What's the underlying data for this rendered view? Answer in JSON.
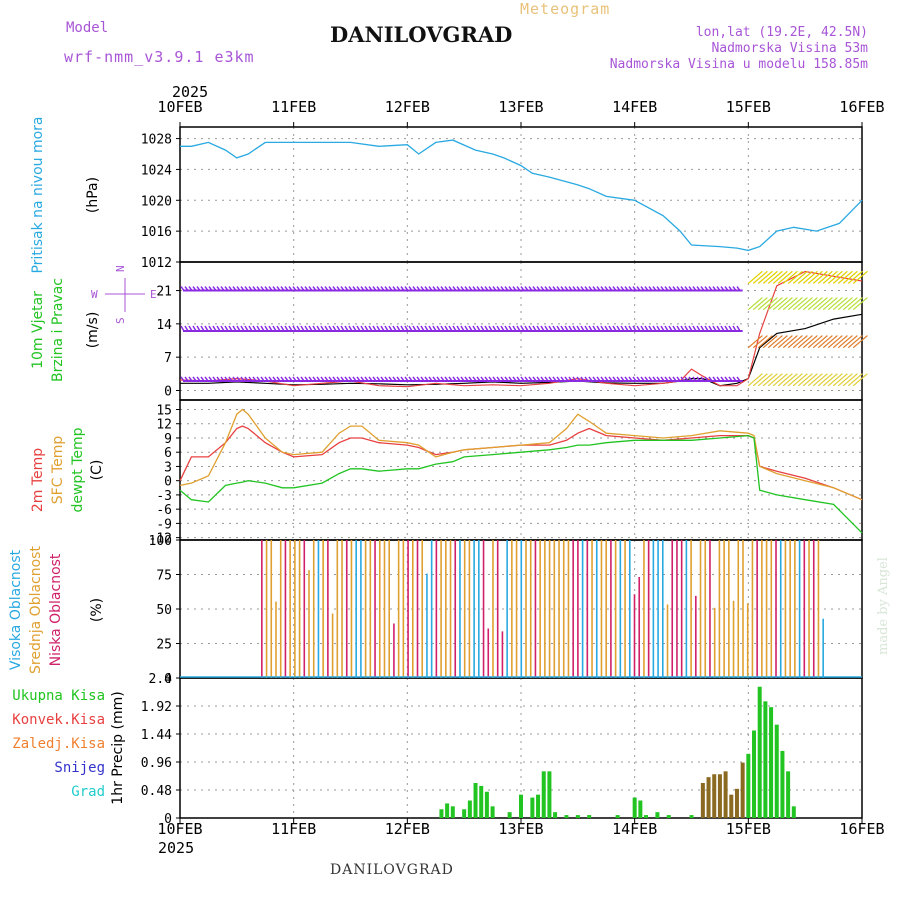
{
  "header": {
    "model_label": "Model",
    "model_run": "wrf-nmm_v3.9.1 e3km",
    "title": "DANILOVGRAD",
    "meteogram": "Meteogram",
    "lonlat": "lon,lat (19.2E, 42.5N)",
    "altitude": "Nadmorska Visina 53m",
    "model_altitude": "Nadmorska Visina u modelu 158.85m"
  },
  "footer": {
    "title": "DANILOVGRAD",
    "made_by": "made by Angel"
  },
  "colors": {
    "pressure": "#29a9e1",
    "wind_axis": "#22c422",
    "wind_axis2": "#22c422",
    "temp2m": "#e84040",
    "sfc": "#e0a030",
    "dew": "#22c422",
    "high_cloud": "#29a9e1",
    "mid_cloud": "#e0a030",
    "low_cloud": "#d0206a",
    "total_precip": "#22c422",
    "conv": "#e84040",
    "frozen": "#f08030",
    "snow": "#3333cc",
    "hail": "#22cccc",
    "barb": "#8a2be2",
    "grid": "#999999"
  },
  "time_axis": {
    "year": "2025",
    "labels": [
      "10FEB",
      "11FEB",
      "12FEB",
      "13FEB",
      "14FEB",
      "15FEB",
      "16FEB"
    ]
  },
  "chart_data": [
    {
      "type": "line",
      "panel": "pressure",
      "ylabel_1": "Pritisak na nivou mora",
      "ylabel_2": "(hPa)",
      "yticks": [
        "1012",
        "1016",
        "1020",
        "1024",
        "1028"
      ],
      "ylim": [
        1012,
        1029.5
      ],
      "x_days": [
        0,
        0.1,
        0.25,
        0.4,
        0.5,
        0.6,
        0.75,
        1.0,
        1.25,
        1.5,
        1.75,
        2.0,
        2.1,
        2.25,
        2.4,
        2.6,
        2.75,
        2.85,
        3.0,
        3.1,
        3.25,
        3.5,
        3.6,
        3.75,
        4.0,
        4.25,
        4.4,
        4.5,
        4.75,
        4.9,
        5.0,
        5.1,
        5.25,
        5.4,
        5.6,
        5.8,
        6.0
      ],
      "values": [
        1027,
        1027,
        1027.5,
        1026.5,
        1025.5,
        1026,
        1027.5,
        1027.5,
        1027.5,
        1027.5,
        1027,
        1027.2,
        1026,
        1027.5,
        1027.8,
        1026.5,
        1026,
        1025.5,
        1024.5,
        1023.5,
        1023,
        1022,
        1021.5,
        1020.5,
        1020,
        1018,
        1016,
        1014.2,
        1014,
        1013.8,
        1013.5,
        1014,
        1016,
        1016.5,
        1016,
        1017,
        1020
      ]
    },
    {
      "type": "line",
      "panel": "wind",
      "ylabel_1": "10m Vjetar",
      "ylabel_2": "Brzina i Pravac",
      "ylabel_3": "(m/s)",
      "direction_key": [
        "N",
        "E",
        "S",
        "W"
      ],
      "yticks": [
        "0",
        "7",
        "14",
        "21"
      ],
      "ylim": [
        -2,
        27
      ],
      "x_days": [
        0,
        0.25,
        0.5,
        0.75,
        1.0,
        1.25,
        1.5,
        1.75,
        2.0,
        2.25,
        2.5,
        2.75,
        3.0,
        3.25,
        3.5,
        3.75,
        4.0,
        4.25,
        4.4,
        4.5,
        4.6,
        4.75,
        4.9,
        5.0,
        5.1,
        5.25,
        5.5,
        5.75,
        6.0
      ],
      "series": [
        {
          "name": "10m wind speed",
          "values": [
            1.5,
            1.5,
            1.8,
            1.5,
            1.2,
            1.3,
            1.5,
            1.4,
            1.2,
            1.3,
            1.5,
            1.8,
            1.5,
            1.7,
            2.0,
            1.6,
            1.5,
            1.5,
            2.0,
            2.5,
            2.5,
            1.0,
            1.5,
            2.5,
            9,
            12,
            13,
            15,
            16
          ]
        },
        {
          "name": "10m wind gust",
          "values": [
            2.2,
            2.0,
            2.5,
            2.0,
            1.0,
            1.5,
            2.0,
            1.0,
            0.8,
            1.5,
            1.0,
            1.2,
            1.0,
            1.5,
            2.5,
            1.5,
            1.0,
            1.5,
            2.0,
            4.5,
            3.0,
            1.0,
            1.0,
            2.5,
            12,
            22,
            25,
            24,
            23
          ]
        }
      ]
    },
    {
      "type": "line",
      "panel": "temperature",
      "ylabel_1": "2m Temp",
      "ylabel_2": "SFC Temp",
      "ylabel_3": "dewpt Temp",
      "ylabel_4": "(C)",
      "yticks": [
        "-12",
        "-9",
        "-6",
        "-3",
        "0",
        "3",
        "6",
        "9",
        "12",
        "15"
      ],
      "ylim": [
        -12.5,
        17
      ],
      "x_days": [
        0,
        0.1,
        0.25,
        0.4,
        0.5,
        0.55,
        0.6,
        0.75,
        0.9,
        1.0,
        1.25,
        1.4,
        1.5,
        1.6,
        1.75,
        2.0,
        2.1,
        2.25,
        2.4,
        2.5,
        2.75,
        3.0,
        3.25,
        3.4,
        3.5,
        3.6,
        3.75,
        4.0,
        4.25,
        4.5,
        4.75,
        5.0,
        5.05,
        5.1,
        5.25,
        5.5,
        5.75,
        6.0
      ],
      "series": [
        {
          "name": "2m Temp",
          "values": [
            0,
            5,
            5,
            8,
            11,
            11.5,
            11,
            8,
            6,
            5,
            5.5,
            8,
            9,
            9,
            8,
            7.5,
            7,
            5.5,
            6,
            6.5,
            7,
            7.5,
            7.5,
            8.5,
            10,
            11,
            9.5,
            9,
            8.5,
            9,
            9.5,
            9.5,
            9,
            3,
            2,
            0.5,
            -1.5,
            -4
          ]
        },
        {
          "name": "SFC Temp",
          "values": [
            -1,
            -0.5,
            1,
            8,
            14,
            15,
            14,
            9,
            6,
            5.5,
            6,
            10,
            11.5,
            11.5,
            8.5,
            8,
            7.5,
            5,
            6,
            6.5,
            7,
            7.5,
            8,
            11,
            14,
            12.5,
            10,
            9.5,
            9,
            9.5,
            10.5,
            10,
            9.5,
            3,
            1.5,
            0,
            -1.5,
            -4
          ]
        },
        {
          "name": "dewpt Temp",
          "values": [
            -2,
            -4,
            -4.5,
            -1,
            -0.5,
            -0.3,
            0,
            -0.5,
            -1.5,
            -1.5,
            -0.5,
            1.5,
            2.5,
            2.5,
            2,
            2.5,
            2.5,
            3.5,
            4,
            5,
            5.5,
            6,
            6.5,
            7,
            7.5,
            7.5,
            8,
            8.5,
            8.5,
            8.5,
            9,
            9.5,
            9,
            -2,
            -3,
            -4,
            -5,
            -11
          ]
        }
      ]
    },
    {
      "type": "bar",
      "panel": "cloud",
      "ylabel_1": "Visoka Oblacnost",
      "ylabel_2": "Srednja Oblacnost",
      "ylabel_3": "Niska Oblacnost",
      "ylabel_4": "(%)",
      "yticks": [
        "0",
        "25",
        "50",
        "75",
        "100"
      ],
      "ylim": [
        0,
        100
      ],
      "x_range_days": [
        0.72,
        5.7
      ],
      "bar_count": 120,
      "series": [
        {
          "name": "Visoka Oblacnost",
          "values": []
        },
        {
          "name": "Srednja Oblacnost",
          "values": []
        },
        {
          "name": "Niska Oblacnost",
          "values": []
        }
      ]
    },
    {
      "type": "bar",
      "panel": "precip",
      "ylabel_1": "1hr Precip (mm)",
      "legend": [
        "Ukupna Kisa",
        "Konvek.Kisa",
        "Zaledj.Kisa",
        "Snijeg",
        "Grad"
      ],
      "yticks": [
        "0",
        "0.48",
        "0.96",
        "1.44",
        "1.92",
        "2.4"
      ],
      "ylim": [
        0,
        2.4
      ],
      "x_days": [
        2.3,
        2.35,
        2.4,
        2.5,
        2.55,
        2.6,
        2.65,
        2.7,
        2.75,
        2.9,
        3.0,
        3.1,
        3.15,
        3.2,
        3.25,
        3.3,
        3.4,
        3.5,
        3.6,
        3.85,
        4.0,
        4.05,
        4.1,
        4.2,
        4.3,
        4.5,
        4.6,
        4.65,
        4.7,
        4.75,
        4.8,
        4.85,
        4.9,
        4.95,
        5.0,
        5.05,
        5.1,
        5.15,
        5.2,
        5.25,
        5.3,
        5.35,
        5.4
      ],
      "values": [
        0.15,
        0.25,
        0.2,
        0.15,
        0.3,
        0.6,
        0.55,
        0.45,
        0.2,
        0.1,
        0.4,
        0.35,
        0.4,
        0.8,
        0.8,
        0.1,
        0.05,
        0.05,
        0.05,
        0.05,
        0.35,
        0.3,
        0.05,
        0.1,
        0.05,
        0.05,
        0.6,
        0.7,
        0.75,
        0.75,
        0.8,
        0.4,
        0.5,
        0.95,
        1.1,
        1.5,
        2.25,
        2.0,
        1.9,
        1.6,
        1.15,
        0.8,
        0.2
      ]
    }
  ]
}
